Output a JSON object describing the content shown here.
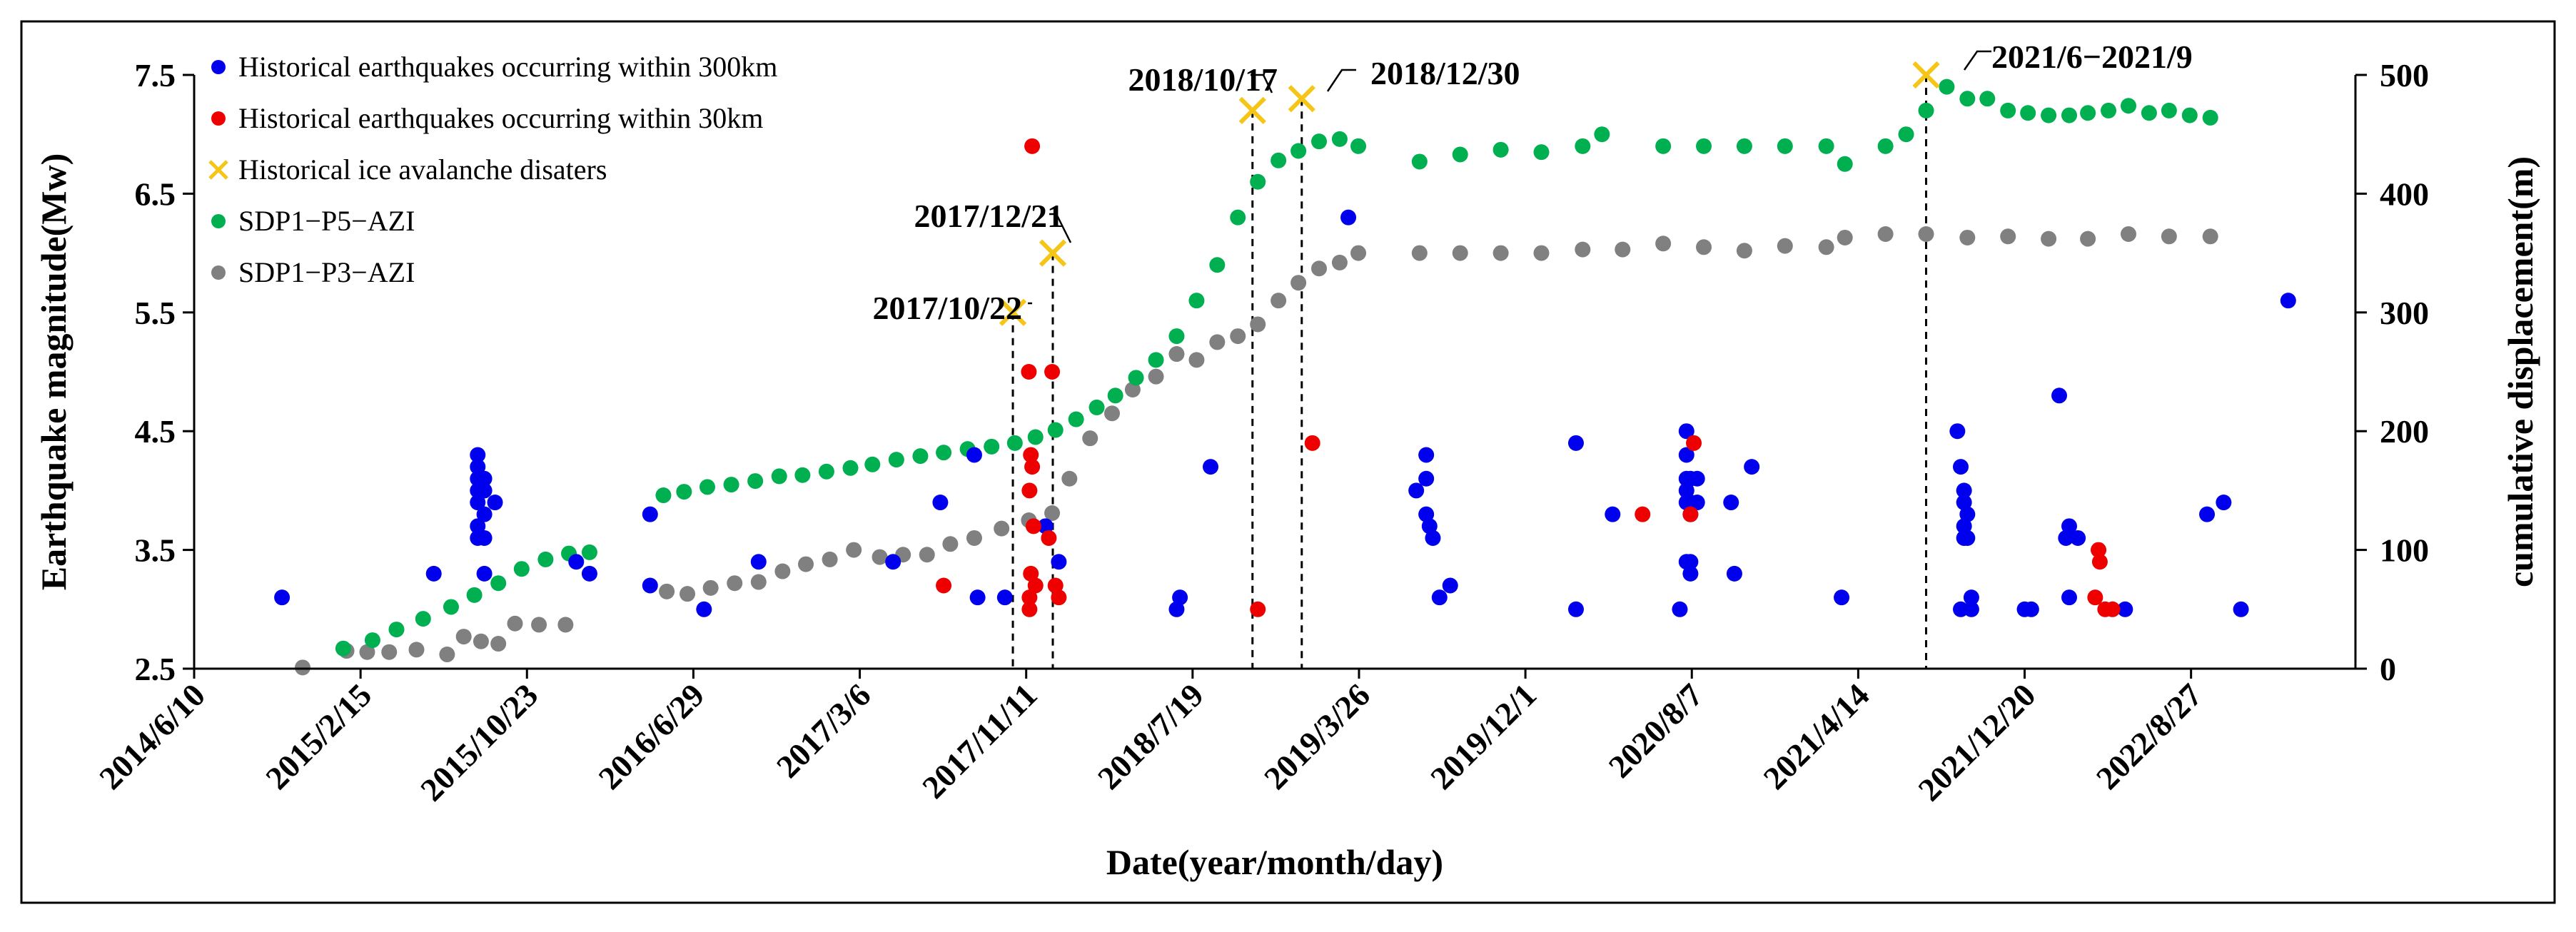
{
  "chart_data": {
    "type": "scatter",
    "xlabel": "Date(year/month/day)",
    "ylabel_left": "Earthquake magnitude(Mw)",
    "ylabel_right": "cumulative displacement(m)",
    "ylim_left": [
      2.5,
      7.5
    ],
    "ylim_right": [
      0,
      500
    ],
    "xlim": [
      "2014/6/10",
      "2023/5/1"
    ],
    "x_ticks": [
      "2014/6/10",
      "2015/2/15",
      "2015/10/23",
      "2016/6/29",
      "2017/3/6",
      "2017/11/11",
      "2018/7/19",
      "2019/3/26",
      "2019/12/1",
      "2020/8/7",
      "2021/4/14",
      "2021/12/20",
      "2022/8/27"
    ],
    "y_ticks_left": [
      "2.5",
      "3.5",
      "4.5",
      "5.5",
      "6.5",
      "7.5"
    ],
    "y_ticks_right": [
      "0",
      "100",
      "200",
      "300",
      "400",
      "500"
    ],
    "legend_position": "top-left",
    "series": [
      {
        "name": "Historical earthquakes occurring within 300km",
        "color": "#0000ee",
        "marker": "circle",
        "axis": "left",
        "points": [
          [
            "2014/10/20",
            3.1
          ],
          [
            "2015/6/5",
            3.3
          ],
          [
            "2015/8/10",
            4.3
          ],
          [
            "2015/8/10",
            4.2
          ],
          [
            "2015/8/10",
            4.1
          ],
          [
            "2015/8/10",
            4.0
          ],
          [
            "2015/8/10",
            3.9
          ],
          [
            "2015/8/10",
            3.7
          ],
          [
            "2015/8/10",
            3.6
          ],
          [
            "2015/8/20",
            4.1
          ],
          [
            "2015/8/20",
            4.0
          ],
          [
            "2015/8/20",
            3.8
          ],
          [
            "2015/8/20",
            3.6
          ],
          [
            "2015/8/20",
            3.3
          ],
          [
            "2015/9/5",
            3.9
          ],
          [
            "2016/1/5",
            3.4
          ],
          [
            "2016/1/25",
            3.3
          ],
          [
            "2016/4/25",
            3.8
          ],
          [
            "2016/4/25",
            3.2
          ],
          [
            "2016/7/15",
            3.0
          ],
          [
            "2016/10/5",
            3.4
          ],
          [
            "2017/4/25",
            3.4
          ],
          [
            "2017/7/5",
            3.9
          ],
          [
            "2017/8/25",
            4.3
          ],
          [
            "2017/8/30",
            3.1
          ],
          [
            "2017/10/10",
            3.1
          ],
          [
            "2017/12/10",
            3.7
          ],
          [
            "2017/12/30",
            3.4
          ],
          [
            "2018/6/25",
            3.0
          ],
          [
            "2018/6/30",
            3.1
          ],
          [
            "2018/8/15",
            4.2
          ],
          [
            "2019/3/10",
            6.3
          ],
          [
            "2019/6/20",
            4.0
          ],
          [
            "2019/7/5",
            4.3
          ],
          [
            "2019/7/5",
            4.1
          ],
          [
            "2019/7/5",
            3.8
          ],
          [
            "2019/7/10",
            3.7
          ],
          [
            "2019/7/15",
            3.6
          ],
          [
            "2019/7/25",
            3.1
          ],
          [
            "2019/8/10",
            3.2
          ],
          [
            "2020/2/15",
            4.4
          ],
          [
            "2020/2/15",
            3.0
          ],
          [
            "2020/4/10",
            3.8
          ],
          [
            "2020/7/20",
            3.0
          ],
          [
            "2020/7/30",
            4.5
          ],
          [
            "2020/7/30",
            4.3
          ],
          [
            "2020/7/30",
            4.1
          ],
          [
            "2020/7/30",
            4.0
          ],
          [
            "2020/7/30",
            3.9
          ],
          [
            "2020/7/30",
            3.4
          ],
          [
            "2020/8/5",
            4.1
          ],
          [
            "2020/8/5",
            3.9
          ],
          [
            "2020/8/5",
            3.8
          ],
          [
            "2020/8/5",
            3.4
          ],
          [
            "2020/8/5",
            3.3
          ],
          [
            "2020/8/15",
            4.1
          ],
          [
            "2020/8/15",
            3.9
          ],
          [
            "2020/10/5",
            3.9
          ],
          [
            "2020/10/10",
            3.3
          ],
          [
            "2020/11/5",
            4.2
          ],
          [
            "2021/3/20",
            3.1
          ],
          [
            "2021/9/10",
            4.5
          ],
          [
            "2021/9/15",
            4.2
          ],
          [
            "2021/9/20",
            4.0
          ],
          [
            "2021/9/20",
            3.9
          ],
          [
            "2021/9/20",
            3.7
          ],
          [
            "2021/9/20",
            3.6
          ],
          [
            "2021/9/15",
            3.0
          ],
          [
            "2021/9/25",
            3.8
          ],
          [
            "2021/9/25",
            3.6
          ],
          [
            "2021/10/1",
            3.1
          ],
          [
            "2021/10/1",
            3.0
          ],
          [
            "2021/12/20",
            3.0
          ],
          [
            "2021/12/30",
            3.0
          ],
          [
            "2022/2/10",
            4.8
          ],
          [
            "2022/2/25",
            3.7
          ],
          [
            "2022/2/25",
            3.1
          ],
          [
            "2022/3/10",
            3.6
          ],
          [
            "2022/2/20",
            3.6
          ],
          [
            "2022/5/20",
            3.0
          ],
          [
            "2022/9/20",
            3.8
          ],
          [
            "2022/10/15",
            3.9
          ],
          [
            "2022/11/10",
            3.0
          ],
          [
            "2023/1/20",
            5.6
          ]
        ]
      },
      {
        "name": "Historical earthquakes occurring within 30km",
        "color": "#ee0000",
        "marker": "circle",
        "axis": "left",
        "points": [
          [
            "2017/7/10",
            3.2
          ],
          [
            "2017/11/20",
            6.9
          ],
          [
            "2017/11/15",
            5.0
          ],
          [
            "2017/11/18",
            4.3
          ],
          [
            "2017/11/20",
            4.2
          ],
          [
            "2017/11/16",
            4.0
          ],
          [
            "2017/11/22",
            3.7
          ],
          [
            "2017/11/18",
            3.3
          ],
          [
            "2017/11/25",
            3.2
          ],
          [
            "2017/11/16",
            3.1
          ],
          [
            "2017/11/16",
            3.0
          ],
          [
            "2017/12/15",
            3.6
          ],
          [
            "2017/12/25",
            3.2
          ],
          [
            "2017/12/30",
            3.1
          ],
          [
            "2017/12/20",
            5.0
          ],
          [
            "2018/10/25",
            3.0
          ],
          [
            "2019/1/15",
            4.4
          ],
          [
            "2020/5/25",
            3.8
          ],
          [
            "2020/8/10",
            4.4
          ],
          [
            "2020/8/5",
            3.8
          ],
          [
            "2022/4/10",
            3.5
          ],
          [
            "2022/4/12",
            3.4
          ],
          [
            "2022/4/5",
            3.1
          ],
          [
            "2022/4/20",
            3.0
          ],
          [
            "2022/5/1",
            3.0
          ]
        ]
      },
      {
        "name": "Historical ice avalanche disaters",
        "color": "#f5c518",
        "marker": "x",
        "axis": "left",
        "points": [
          [
            "2017/10/22",
            5.5
          ],
          [
            "2017/12/21",
            6.0
          ],
          [
            "2018/10/17",
            7.2
          ],
          [
            "2018/12/30",
            7.3
          ],
          [
            "2021/7/25",
            7.5
          ]
        ]
      },
      {
        "name": "SDP1−P5−AZI",
        "color": "#00b050",
        "marker": "circle",
        "axis": "right",
        "points": [
          [
            "2015/1/20",
            17
          ],
          [
            "2015/3/5",
            24
          ],
          [
            "2015/4/10",
            33
          ],
          [
            "2015/5/20",
            42
          ],
          [
            "2015/7/1",
            52
          ],
          [
            "2015/8/5",
            62
          ],
          [
            "2015/9/10",
            72
          ],
          [
            "2015/10/15",
            84
          ],
          [
            "2015/11/20",
            92
          ],
          [
            "2015/12/25",
            97
          ],
          [
            "2016/1/25",
            98
          ],
          [
            "2016/5/15",
            146
          ],
          [
            "2016/6/15",
            149
          ],
          [
            "2016/7/20",
            153
          ],
          [
            "2016/8/25",
            155
          ],
          [
            "2016/9/30",
            158
          ],
          [
            "2016/11/5",
            162
          ],
          [
            "2016/12/10",
            163
          ],
          [
            "2017/1/15",
            166
          ],
          [
            "2017/2/20",
            169
          ],
          [
            "2017/3/25",
            172
          ],
          [
            "2017/4/30",
            176
          ],
          [
            "2017/6/5",
            179
          ],
          [
            "2017/7/10",
            182
          ],
          [
            "2017/8/15",
            185
          ],
          [
            "2017/9/20",
            187
          ],
          [
            "2017/10/25",
            190
          ],
          [
            "2017/11/25",
            195
          ],
          [
            "2017/12/25",
            201
          ],
          [
            "2018/1/25",
            210
          ],
          [
            "2018/2/25",
            220
          ],
          [
            "2018/3/25",
            230
          ],
          [
            "2018/4/25",
            245
          ],
          [
            "2018/5/25",
            260
          ],
          [
            "2018/6/25",
            280
          ],
          [
            "2018/7/25",
            310
          ],
          [
            "2018/8/25",
            340
          ],
          [
            "2018/9/25",
            380
          ],
          [
            "2018/10/25",
            410
          ],
          [
            "2018/11/25",
            428
          ],
          [
            "2018/12/25",
            436
          ],
          [
            "2019/1/25",
            444
          ],
          [
            "2019/2/25",
            446
          ],
          [
            "2019/3/25",
            440
          ],
          [
            "2019/6/25",
            427
          ],
          [
            "2019/8/25",
            433
          ],
          [
            "2019/10/25",
            437
          ],
          [
            "2019/12/25",
            435
          ],
          [
            "2020/2/25",
            440
          ],
          [
            "2020/3/25",
            450
          ],
          [
            "2020/6/25",
            440
          ],
          [
            "2020/8/25",
            440
          ],
          [
            "2020/10/25",
            440
          ],
          [
            "2020/12/25",
            440
          ],
          [
            "2021/2/25",
            440
          ],
          [
            "2021/3/25",
            425
          ],
          [
            "2021/5/25",
            440
          ],
          [
            "2021/6/25",
            450
          ],
          [
            "2021/7/25",
            470
          ],
          [
            "2021/8/25",
            490
          ],
          [
            "2021/9/25",
            480
          ],
          [
            "2021/10/25",
            480
          ],
          [
            "2021/11/25",
            470
          ],
          [
            "2021/12/25",
            468
          ],
          [
            "2022/1/25",
            466
          ],
          [
            "2022/2/25",
            466
          ],
          [
            "2022/3/25",
            468
          ],
          [
            "2022/4/25",
            470
          ],
          [
            "2022/5/25",
            474
          ],
          [
            "2022/6/25",
            468
          ],
          [
            "2022/7/25",
            470
          ],
          [
            "2022/8/25",
            466
          ],
          [
            "2022/9/25",
            464
          ]
        ]
      },
      {
        "name": "SDP1−P3−AZI",
        "color": "#808080",
        "marker": "circle",
        "axis": "right",
        "points": [
          [
            "2014/11/20",
            1
          ],
          [
            "2015/1/25",
            15
          ],
          [
            "2015/2/25",
            14
          ],
          [
            "2015/3/30",
            14
          ],
          [
            "2015/5/10",
            16
          ],
          [
            "2015/6/25",
            12
          ],
          [
            "2015/7/20",
            27
          ],
          [
            "2015/8/15",
            23
          ],
          [
            "2015/9/10",
            21
          ],
          [
            "2015/10/5",
            38
          ],
          [
            "2015/11/10",
            37
          ],
          [
            "2015/12/20",
            37
          ],
          [
            "2016/5/20",
            65
          ],
          [
            "2016/6/20",
            63
          ],
          [
            "2016/7/25",
            68
          ],
          [
            "2016/8/30",
            72
          ],
          [
            "2016/10/5",
            73
          ],
          [
            "2016/11/10",
            82
          ],
          [
            "2016/12/15",
            88
          ],
          [
            "2017/1/20",
            92
          ],
          [
            "2017/2/25",
            100
          ],
          [
            "2017/4/5",
            94
          ],
          [
            "2017/5/10",
            96
          ],
          [
            "2017/6/15",
            96
          ],
          [
            "2017/7/20",
            105
          ],
          [
            "2017/8/25",
            110
          ],
          [
            "2017/10/5",
            118
          ],
          [
            "2017/11/15",
            125
          ],
          [
            "2017/12/20",
            131
          ],
          [
            "2018/1/15",
            160
          ],
          [
            "2018/2/15",
            194
          ],
          [
            "2018/3/20",
            215
          ],
          [
            "2018/4/20",
            235
          ],
          [
            "2018/5/25",
            246
          ],
          [
            "2018/6/25",
            265
          ],
          [
            "2018/7/25",
            260
          ],
          [
            "2018/8/25",
            275
          ],
          [
            "2018/9/25",
            280
          ],
          [
            "2018/10/25",
            290
          ],
          [
            "2018/11/25",
            310
          ],
          [
            "2018/12/25",
            325
          ],
          [
            "2019/1/25",
            337
          ],
          [
            "2019/2/25",
            342
          ],
          [
            "2019/3/25",
            350
          ],
          [
            "2019/6/25",
            350
          ],
          [
            "2019/8/25",
            350
          ],
          [
            "2019/10/25",
            350
          ],
          [
            "2019/12/25",
            350
          ],
          [
            "2020/2/25",
            353
          ],
          [
            "2020/4/25",
            353
          ],
          [
            "2020/6/25",
            358
          ],
          [
            "2020/8/25",
            355
          ],
          [
            "2020/10/25",
            352
          ],
          [
            "2020/12/25",
            356
          ],
          [
            "2021/2/25",
            355
          ],
          [
            "2021/3/25",
            363
          ],
          [
            "2021/5/25",
            366
          ],
          [
            "2021/7/25",
            366
          ],
          [
            "2021/9/25",
            363
          ],
          [
            "2021/11/25",
            364
          ],
          [
            "2022/1/25",
            362
          ],
          [
            "2022/3/25",
            362
          ],
          [
            "2022/5/25",
            366
          ],
          [
            "2022/7/25",
            364
          ],
          [
            "2022/9/25",
            364
          ]
        ]
      }
    ],
    "annotations": [
      {
        "text": "2017/10/22",
        "date": "2017/10/22",
        "value": 5.5
      },
      {
        "text": "2017/12/21",
        "date": "2017/12/21",
        "value": 6.0
      },
      {
        "text": "2018/10/17",
        "date": "2018/10/17",
        "value": 7.2
      },
      {
        "text": "2018/12/30",
        "date": "2018/12/30",
        "value": 7.3
      },
      {
        "text": "2021/6−2021/9",
        "date": "2021/7/25",
        "value": 7.5
      }
    ]
  }
}
